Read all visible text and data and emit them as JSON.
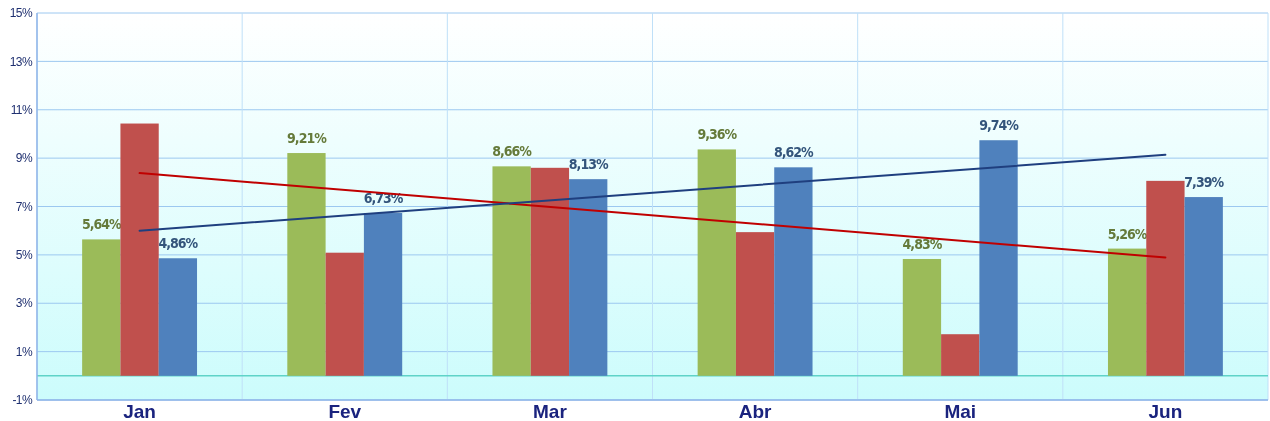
{
  "chart_data": {
    "type": "bar",
    "categories": [
      "Jan",
      "Fev",
      "Mar",
      "Abr",
      "Mai",
      "Jun"
    ],
    "series": [
      {
        "color": "#9bbb59",
        "values": [
          5.64,
          9.21,
          8.66,
          9.36,
          4.83,
          5.26
        ],
        "value_labels": [
          "5,64%",
          "9,21%",
          "8,66%",
          "9,36%",
          "4,83%",
          "5,26%"
        ]
      },
      {
        "color": "#c0504d",
        "values": [
          10.43,
          5.09,
          8.6,
          5.94,
          1.72,
          8.06
        ]
      },
      {
        "color": "#4f81bd",
        "values": [
          4.86,
          6.73,
          8.13,
          8.62,
          9.74,
          7.39
        ],
        "value_labels": [
          "4,86%",
          "6,73%",
          "8,13%",
          "8,62%",
          "9,74%",
          "7,39%"
        ]
      },
      {
        "type": "line",
        "color": "#c00000",
        "x": [
          "Jan",
          "Jun"
        ],
        "values": [
          8.38,
          4.89
        ]
      },
      {
        "type": "line",
        "color": "#1f3f7f",
        "x": [
          "Jan",
          "Jun"
        ],
        "values": [
          6.0,
          9.14
        ]
      }
    ],
    "ylim": [
      -1,
      15
    ],
    "yticks": [
      {
        "value": -1,
        "label": "-1%"
      },
      {
        "value": 1,
        "label": "1%"
      },
      {
        "value": 3,
        "label": "3%"
      },
      {
        "value": 5,
        "label": "5%"
      },
      {
        "value": 7,
        "label": "7%"
      },
      {
        "value": 9,
        "label": "9%"
      },
      {
        "value": 11,
        "label": "11%"
      },
      {
        "value": 13,
        "label": "13%"
      },
      {
        "value": 15,
        "label": "15%"
      }
    ],
    "ref_lines": [
      {
        "axis": "y",
        "value": 0,
        "color": "#5fd3c8"
      }
    ],
    "grid": true,
    "marker": "none",
    "line_style": "solid"
  }
}
